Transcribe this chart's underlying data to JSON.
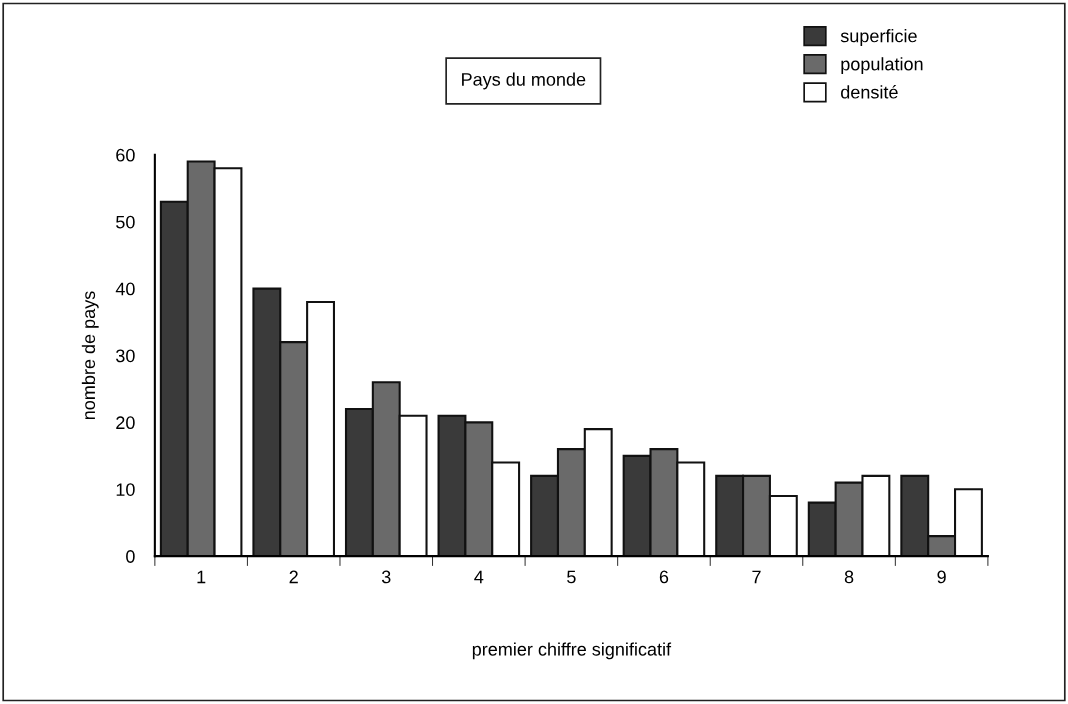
{
  "chart_data": {
    "type": "bar",
    "title": "Pays du monde",
    "xlabel": "premier chiffre significatif",
    "ylabel": "nombre de pays",
    "categories": [
      "1",
      "2",
      "3",
      "4",
      "5",
      "6",
      "7",
      "8",
      "9"
    ],
    "series": [
      {
        "name": "superficie",
        "color": "#3a3a3a",
        "values": [
          53,
          40,
          22,
          21,
          12,
          15,
          12,
          8,
          12
        ]
      },
      {
        "name": "population",
        "color": "#6a6a6a",
        "values": [
          59,
          32,
          26,
          20,
          16,
          16,
          12,
          11,
          3
        ]
      },
      {
        "name": "densité",
        "color": "#ffffff",
        "values": [
          58,
          38,
          21,
          14,
          19,
          14,
          9,
          12,
          10
        ]
      }
    ],
    "ylim": [
      0,
      60
    ],
    "yticks": [
      0,
      10,
      20,
      30,
      40,
      50,
      60
    ],
    "grid": false,
    "legend": "top right"
  }
}
